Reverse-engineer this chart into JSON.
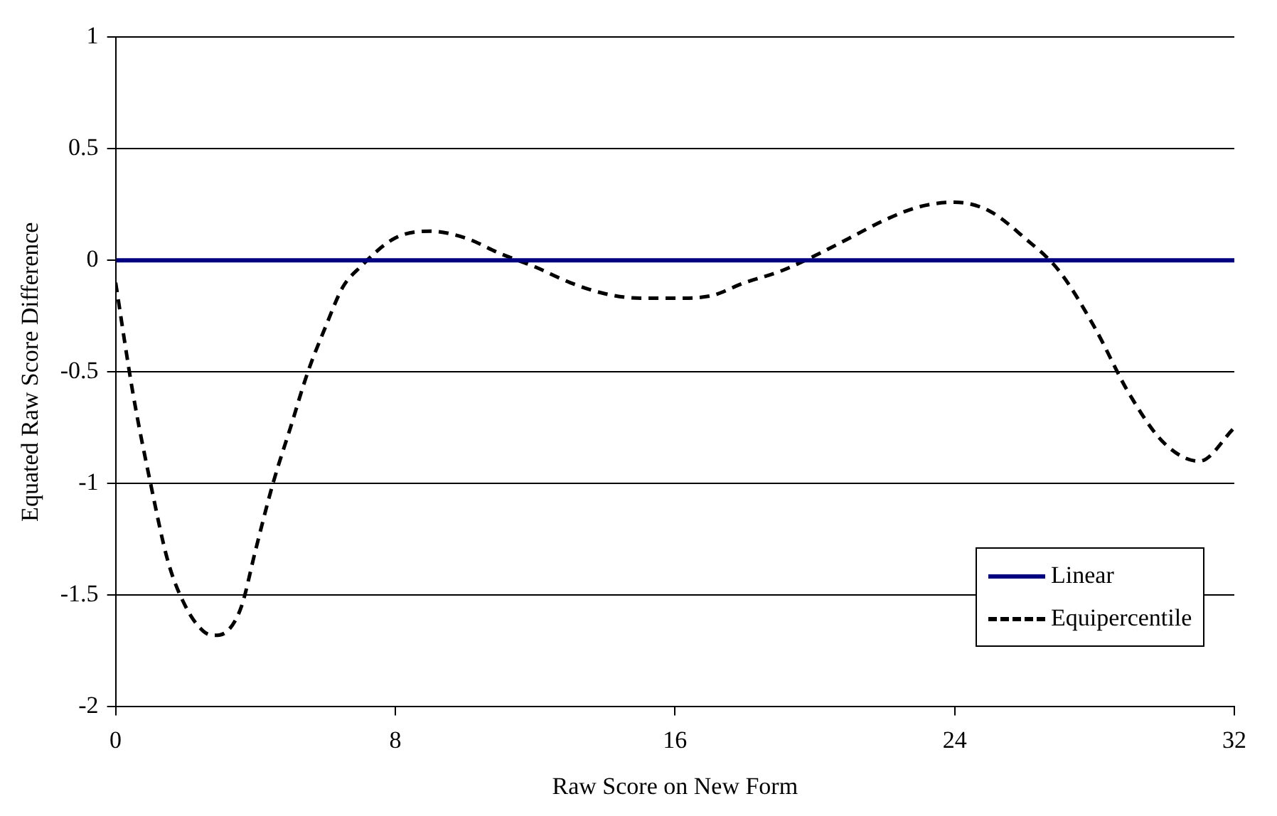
{
  "chart_data": {
    "type": "line",
    "xlabel": "Raw Score on New Form",
    "ylabel": "Equated Raw Score Difference",
    "xlim": [
      0,
      32
    ],
    "xticks": [
      0,
      8,
      16,
      24,
      32
    ],
    "ylim": [
      -2,
      1
    ],
    "yticks": [
      -2,
      -1.5,
      -1,
      -0.5,
      0,
      0.5,
      1
    ],
    "grid": "y",
    "legend": "bottom right",
    "marker": "none",
    "series": [
      {
        "name": "Linear",
        "color": "#000080",
        "line_style": "solid",
        "x": [
          0,
          32
        ],
        "values": [
          0,
          0
        ]
      },
      {
        "name": "Equipercentile",
        "color": "#000000",
        "line_style": "dashed",
        "x": [
          0,
          0.5,
          1,
          1.5,
          2,
          2.5,
          2.8,
          3.2,
          3.6,
          4,
          4.5,
          5,
          5.5,
          6,
          6.5,
          7,
          8,
          9,
          10,
          11,
          12,
          13,
          14,
          15,
          16,
          17,
          18,
          19,
          20,
          21,
          22,
          23,
          24,
          25,
          26,
          27,
          28,
          29,
          30,
          31,
          32
        ],
        "values": [
          -0.1,
          -0.6,
          -1.0,
          -1.35,
          -1.55,
          -1.66,
          -1.68,
          -1.66,
          -1.55,
          -1.3,
          -1.0,
          -0.75,
          -0.5,
          -0.3,
          -0.12,
          -0.03,
          0.1,
          0.13,
          0.1,
          0.03,
          -0.03,
          -0.1,
          -0.15,
          -0.17,
          -0.17,
          -0.16,
          -0.1,
          -0.05,
          0.02,
          0.1,
          0.18,
          0.24,
          0.26,
          0.22,
          0.1,
          -0.05,
          -0.3,
          -0.6,
          -0.82,
          -0.9,
          -0.75
        ]
      }
    ]
  }
}
